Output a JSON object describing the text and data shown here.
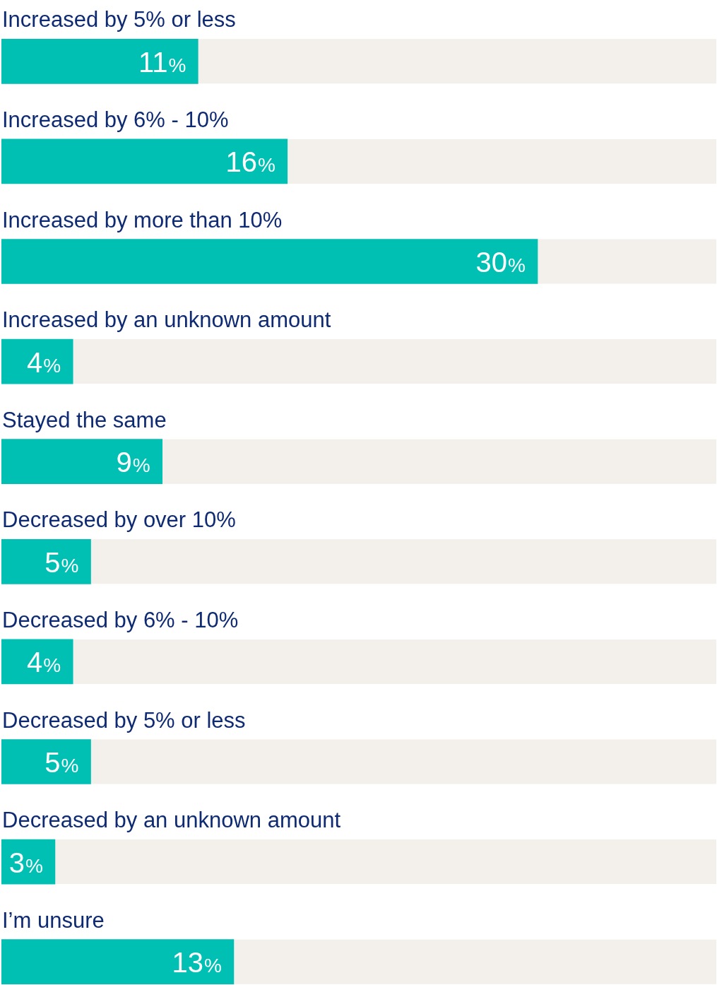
{
  "chart_data": {
    "type": "bar",
    "orientation": "horizontal",
    "categories": [
      "Increased by 5% or less",
      "Increased by 6% - 10%",
      "Increased by more than 10%",
      "Increased by an unknown amount",
      "Stayed the same",
      "Decreased by over 10%",
      "Decreased by 6% - 10%",
      "Decreased by 5% or less",
      "Decreased by an unknown amount",
      "I’m unsure"
    ],
    "values": [
      11,
      16,
      30,
      4,
      9,
      5,
      4,
      5,
      3,
      13
    ],
    "value_labels": [
      "11%",
      "16%",
      "30%",
      "4%",
      "9%",
      "5%",
      "4%",
      "5%",
      "3%",
      "13%"
    ],
    "color": "#00bfb3",
    "xlim": [
      0,
      40
    ],
    "tick_labels": "y"
  }
}
